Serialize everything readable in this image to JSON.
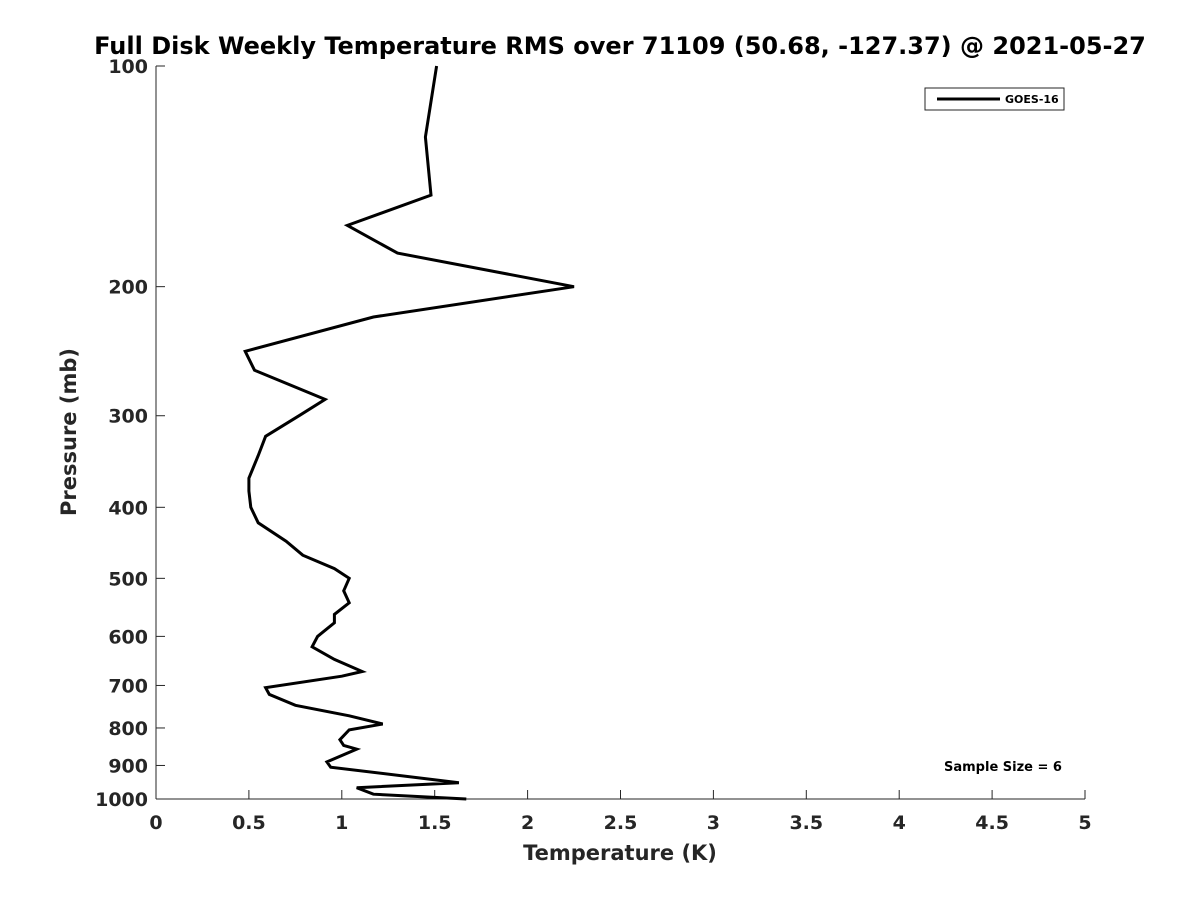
{
  "chart_data": {
    "type": "line",
    "title": "Full Disk Weekly Temperature RMS over 71109 (50.68, -127.37) @ 2021-05-27",
    "xlabel": "Temperature (K)",
    "ylabel": "Pressure (mb)",
    "xlim": [
      0,
      5
    ],
    "ylim": [
      100,
      1000
    ],
    "y_scale": "log",
    "y_reversed": true,
    "x_ticks": [
      0,
      0.5,
      1,
      1.5,
      2,
      2.5,
      3,
      3.5,
      4,
      4.5,
      5
    ],
    "x_tick_labels": [
      "0",
      "0.5",
      "1",
      "1.5",
      "2",
      "2.5",
      "3",
      "3.5",
      "4",
      "4.5",
      "5"
    ],
    "y_ticks": [
      100,
      200,
      300,
      400,
      500,
      600,
      700,
      800,
      900,
      1000
    ],
    "y_tick_labels": [
      "100",
      "200",
      "300",
      "400",
      "500",
      "600",
      "700",
      "800",
      "900",
      "1000"
    ],
    "grid": false,
    "legend_position": "top-right",
    "series": [
      {
        "name": "GOES-16",
        "color": "#000000",
        "points": [
          [
            1.51,
            100
          ],
          [
            1.45,
            125
          ],
          [
            1.48,
            150
          ],
          [
            1.03,
            165
          ],
          [
            1.3,
            180
          ],
          [
            2.25,
            200
          ],
          [
            1.17,
            220
          ],
          [
            0.48,
            245
          ],
          [
            0.53,
            260
          ],
          [
            0.91,
            285
          ],
          [
            0.77,
            300
          ],
          [
            0.59,
            320
          ],
          [
            0.55,
            340
          ],
          [
            0.5,
            365
          ],
          [
            0.5,
            380
          ],
          [
            0.51,
            400
          ],
          [
            0.55,
            420
          ],
          [
            0.7,
            445
          ],
          [
            0.79,
            465
          ],
          [
            0.96,
            485
          ],
          [
            1.04,
            500
          ],
          [
            1.01,
            520
          ],
          [
            1.04,
            540
          ],
          [
            0.96,
            560
          ],
          [
            0.96,
            575
          ],
          [
            0.87,
            600
          ],
          [
            0.84,
            620
          ],
          [
            0.96,
            645
          ],
          [
            1.11,
            670
          ],
          [
            1.0,
            680
          ],
          [
            0.59,
            705
          ],
          [
            0.61,
            720
          ],
          [
            0.75,
            745
          ],
          [
            1.04,
            770
          ],
          [
            1.22,
            790
          ],
          [
            1.04,
            805
          ],
          [
            0.99,
            830
          ],
          [
            1.01,
            845
          ],
          [
            1.08,
            855
          ],
          [
            0.92,
            890
          ],
          [
            0.94,
            905
          ],
          [
            1.63,
            950
          ],
          [
            1.08,
            965
          ],
          [
            1.17,
            985
          ],
          [
            1.67,
            1000
          ]
        ]
      }
    ],
    "annotations": [
      "Sample Size = 6"
    ]
  }
}
